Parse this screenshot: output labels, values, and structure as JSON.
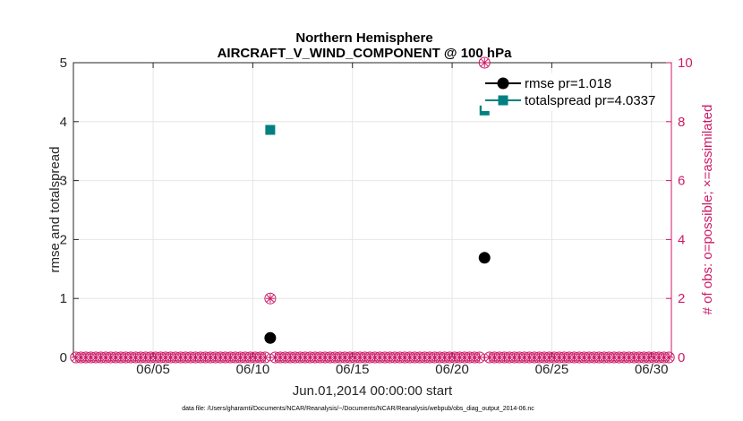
{
  "chart_data": {
    "type": "scatter",
    "title": "Northern Hemisphere",
    "subtitle": "AIRCRAFT_V_WIND_COMPONENT @ 100 hPa",
    "xlabel": "Jun.01,2014 00:00:00 start",
    "ylabel_left": "rmse and totalspread",
    "ylabel_right": "# of obs: o=possible; ×=assimilated",
    "xlim": [
      1,
      31
    ],
    "ylim_left": [
      0,
      5
    ],
    "ylim_right": [
      0,
      10
    ],
    "x_ticks": [
      5,
      10,
      15,
      20,
      25,
      30
    ],
    "x_tick_labels": [
      "06/05",
      "06/10",
      "06/15",
      "06/20",
      "06/25",
      "06/30"
    ],
    "y_ticks_left": [
      0,
      1,
      2,
      3,
      4,
      5
    ],
    "y_tick_labels_left": [
      "0",
      "1",
      "2",
      "3",
      "4",
      "5"
    ],
    "y_ticks_right": [
      0,
      2,
      4,
      6,
      8,
      10
    ],
    "y_tick_labels_right": [
      "0",
      "2",
      "4",
      "6",
      "8",
      "10"
    ],
    "grid": true,
    "legend_position": "top-right",
    "series": [
      {
        "name": "rmse",
        "legend_label": "rmse pr=1.018",
        "axis": "left",
        "color": "#000000",
        "x": [
          10.875,
          21.625
        ],
        "y": [
          0.33,
          1.69
        ]
      },
      {
        "name": "totalspread",
        "legend_label": "totalspread pr=4.0337",
        "axis": "left",
        "color": "#008080",
        "x": [
          10.875,
          21.625
        ],
        "y": [
          3.86,
          4.19
        ]
      },
      {
        "name": "obs_possible",
        "axis": "right",
        "color": "#cc1a66",
        "x_start": 1.125,
        "x_step": 0.25,
        "x_end": 30.875,
        "y_baseline": 0,
        "nonzero": [
          {
            "x": 10.875,
            "y": 2
          },
          {
            "x": 21.625,
            "y": 10
          }
        ]
      },
      {
        "name": "obs_assimilated",
        "axis": "right",
        "color": "#cc1a66",
        "x_start": 1.125,
        "x_step": 0.25,
        "x_end": 30.875,
        "y_baseline": 0,
        "nonzero": [
          {
            "x": 10.875,
            "y": 2
          },
          {
            "x": 21.625,
            "y": 10
          }
        ]
      }
    ],
    "footnote": "data file: /Users/gharamti/Documents/NCAR/Reanalysis/~/Documents/NCAR/Reanalysis/webpub/obs_diag_output_2014-06.nc"
  }
}
